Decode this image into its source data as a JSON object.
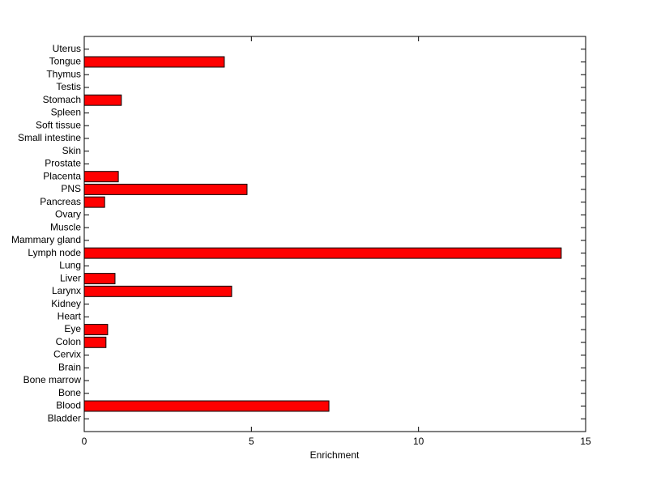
{
  "chart_data": {
    "type": "barh",
    "xlabel": "Enrichment",
    "categories": [
      "Bladder",
      "Blood",
      "Bone",
      "Bone marrow",
      "Brain",
      "Cervix",
      "Colon",
      "Eye",
      "Heart",
      "Kidney",
      "Larynx",
      "Liver",
      "Lung",
      "Lymph node",
      "Mammary gland",
      "Muscle",
      "Ovary",
      "Pancreas",
      "PNS",
      "Placenta",
      "Prostate",
      "Skin",
      "Small intestine",
      "Soft tissue",
      "Spleen",
      "Stomach",
      "Testis",
      "Thymus",
      "Tongue",
      "Uterus"
    ],
    "values": [
      0,
      7.32,
      0,
      0,
      0,
      0,
      0.65,
      0.7,
      0,
      0,
      4.41,
      0.92,
      0,
      14.27,
      0,
      0,
      0,
      0.61,
      4.87,
      1.02,
      0,
      0,
      0,
      0,
      0,
      1.11,
      0,
      0,
      4.19,
      0
    ],
    "color": "#ff0000",
    "xlim": [
      0,
      15
    ],
    "xticks": [
      0,
      5,
      10,
      15
    ]
  }
}
